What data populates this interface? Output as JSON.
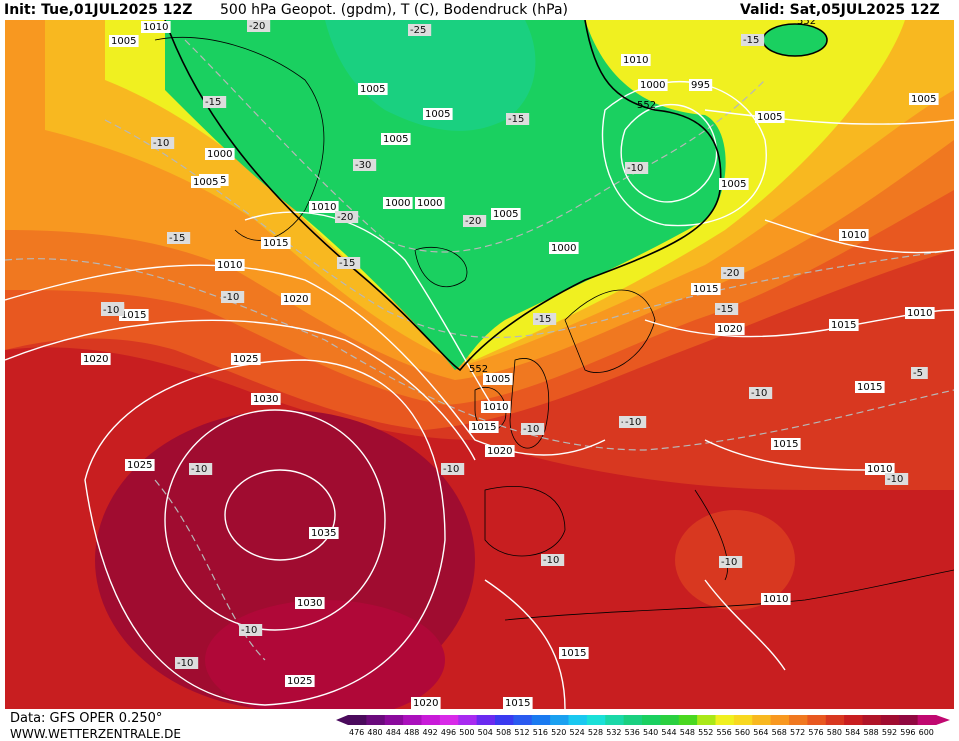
{
  "header": {
    "init": "Init: Tue,01JUL2025 12Z",
    "title": "500 hPa Geopot. (gpdm), T (C), Bodendruck (hPa)",
    "valid": "Valid: Sat,05JUL2025 12Z"
  },
  "footer": {
    "data_source": "Data: GFS OPER 0.250°",
    "website": "WWW.WETTERZENTRALE.DE"
  },
  "legend": {
    "ticks": [
      "476",
      "480",
      "484",
      "488",
      "492",
      "496",
      "500",
      "504",
      "508",
      "512",
      "516",
      "520",
      "524",
      "528",
      "532",
      "536",
      "540",
      "544",
      "548",
      "552",
      "556",
      "560",
      "564",
      "568",
      "572",
      "576",
      "580",
      "584",
      "588",
      "592",
      "596",
      "600"
    ],
    "colors": [
      "#4a0a5c",
      "#6a0a7c",
      "#8a0a9c",
      "#aa10bc",
      "#c81ad8",
      "#d82ae8",
      "#a82af0",
      "#6a2af0",
      "#3a3af0",
      "#2a5af0",
      "#1a7af0",
      "#1aa0f0",
      "#1ac8f0",
      "#1ae0d8",
      "#1ad8a8",
      "#1ad080",
      "#1ad060",
      "#2ad040",
      "#4ad820",
      "#aae818",
      "#f0f020",
      "#f8d820",
      "#f8b820",
      "#f89820",
      "#f07820",
      "#e85820",
      "#d83820",
      "#c81e20",
      "#b01428",
      "#a00c30",
      "#900840",
      "#c00870"
    ]
  },
  "map": {
    "pressure_labels": [
      "1010",
      "1005",
      "1005",
      "1000",
      "1005",
      "1010",
      "1005",
      "1005",
      "1000",
      "1015",
      "1005",
      "1000",
      "1010",
      "1000",
      "1005",
      "1005",
      "995",
      "1000",
      "1005",
      "1005",
      "1010",
      "1015",
      "1020",
      "1025",
      "1020",
      "1030",
      "1025",
      "1035",
      "1030",
      "1025",
      "1020",
      "1015",
      "1010",
      "1005",
      "1015",
      "1020",
      "1015",
      "1010",
      "1015",
      "1010",
      "1015",
      "1010",
      "1015",
      "1015",
      "1020",
      "1010"
    ],
    "temperature_labels": [
      "-20",
      "-25",
      "-15",
      "-15",
      "-15",
      "-10",
      "-30",
      "-20",
      "-20",
      "-15",
      "-10",
      "-15",
      "-10",
      "-20",
      "-15",
      "-20",
      "-10",
      "-15",
      "-10",
      "-10",
      "-10",
      "-10",
      "-10",
      "-10",
      "-10",
      "-10",
      "-10",
      "-5",
      "-10",
      "-10"
    ],
    "geopotential_labels": [
      "552",
      "552",
      "552"
    ]
  }
}
